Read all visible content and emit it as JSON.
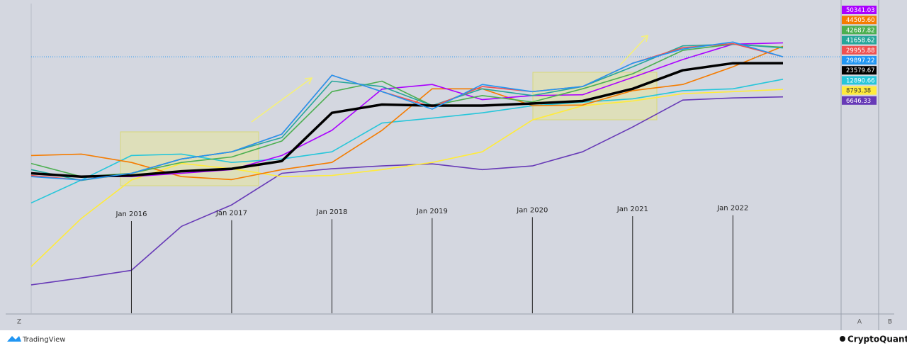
{
  "chart_data": {
    "type": "line",
    "log_scale": true,
    "categories": [
      null,
      null,
      null,
      null,
      null,
      null,
      null,
      null,
      null,
      null,
      null,
      null,
      null,
      null,
      null,
      null
    ],
    "ylim": [
      2,
      220000
    ],
    "annotations": [
      "Jan 2016",
      "Jan 2017",
      "Jan 2018",
      "Jan 2019",
      "Jan 2020",
      "Jan 2021",
      "Jan 2022"
    ],
    "series": [
      {
        "color": "#673ab7",
        "values": [
          5.8,
          7.5,
          10,
          52,
          116,
          380,
          450,
          500,
          540,
          436,
          500,
          850,
          2150,
          5900,
          6400,
          6646.33
        ],
        "last_label": "6646.33"
      },
      {
        "color": "#ffeb3b",
        "values": [
          11.5,
          70,
          295,
          550,
          450,
          335,
          350,
          436,
          570,
          850,
          2800,
          4770,
          5700,
          7500,
          8100,
          8793.38
        ],
        "last_label": "8793.38"
      },
      {
        "color": "#26c6da",
        "values": [
          125,
          295,
          740,
          780,
          570,
          650,
          850,
          2500,
          3000,
          3660,
          4770,
          5450,
          6200,
          8400,
          9000,
          12890.66
        ],
        "last_label": "12890.66"
      },
      {
        "color": "#f57c00",
        "values": [
          740,
          780,
          570,
          335,
          300,
          436,
          570,
          1900,
          9000,
          9000,
          4800,
          4900,
          8400,
          10600,
          20500,
          44505.6
        ],
        "last_label": "44505.60"
      },
      {
        "color": "#aa00ff",
        "values": [
          380,
          335,
          335,
          380,
          436,
          740,
          1900,
          8900,
          10600,
          6000,
          7000,
          7200,
          13800,
          27000,
          48000,
          50341.03
        ],
        "last_label": "50341.03"
      },
      {
        "color": "#4caf50",
        "values": [
          550,
          335,
          380,
          570,
          700,
          1270,
          8100,
          12000,
          4800,
          7000,
          5500,
          9000,
          15800,
          38000,
          48000,
          42687.82
        ],
        "last_label": "42687.82"
      },
      {
        "color": "#26a69a",
        "values": [
          436,
          290,
          380,
          650,
          850,
          1450,
          12000,
          9800,
          4800,
          9000,
          7000,
          9800,
          20500,
          45000,
          48000,
          41658.62
        ],
        "last_label": "41658.62"
      },
      {
        "color": "#f05050",
        "values": [
          350,
          295,
          380,
          650,
          850,
          1650,
          15000,
          8100,
          4600,
          9800,
          8100,
          9800,
          23500,
          42000,
          49000,
          29955.88
        ],
        "last_label": "29955.88"
      },
      {
        "color": "#000000",
        "values": [
          380,
          335,
          350,
          410,
          450,
          600,
          3660,
          5000,
          4800,
          4800,
          5200,
          5700,
          9000,
          18000,
          23500,
          23579.67
        ],
        "last_label": "23579.67"
      },
      {
        "color": "#2196f3",
        "values": [
          335,
          295,
          380,
          650,
          850,
          1650,
          15000,
          8100,
          4200,
          10600,
          8100,
          9800,
          23500,
          40000,
          52000,
          29897.22
        ],
        "last_label": "29897.22"
      }
    ]
  },
  "ui": {
    "left_button": "Z",
    "axis_buttons": [
      "A",
      "B"
    ],
    "brand_left": "TradingView",
    "brand_right": "CryptoQuant"
  }
}
